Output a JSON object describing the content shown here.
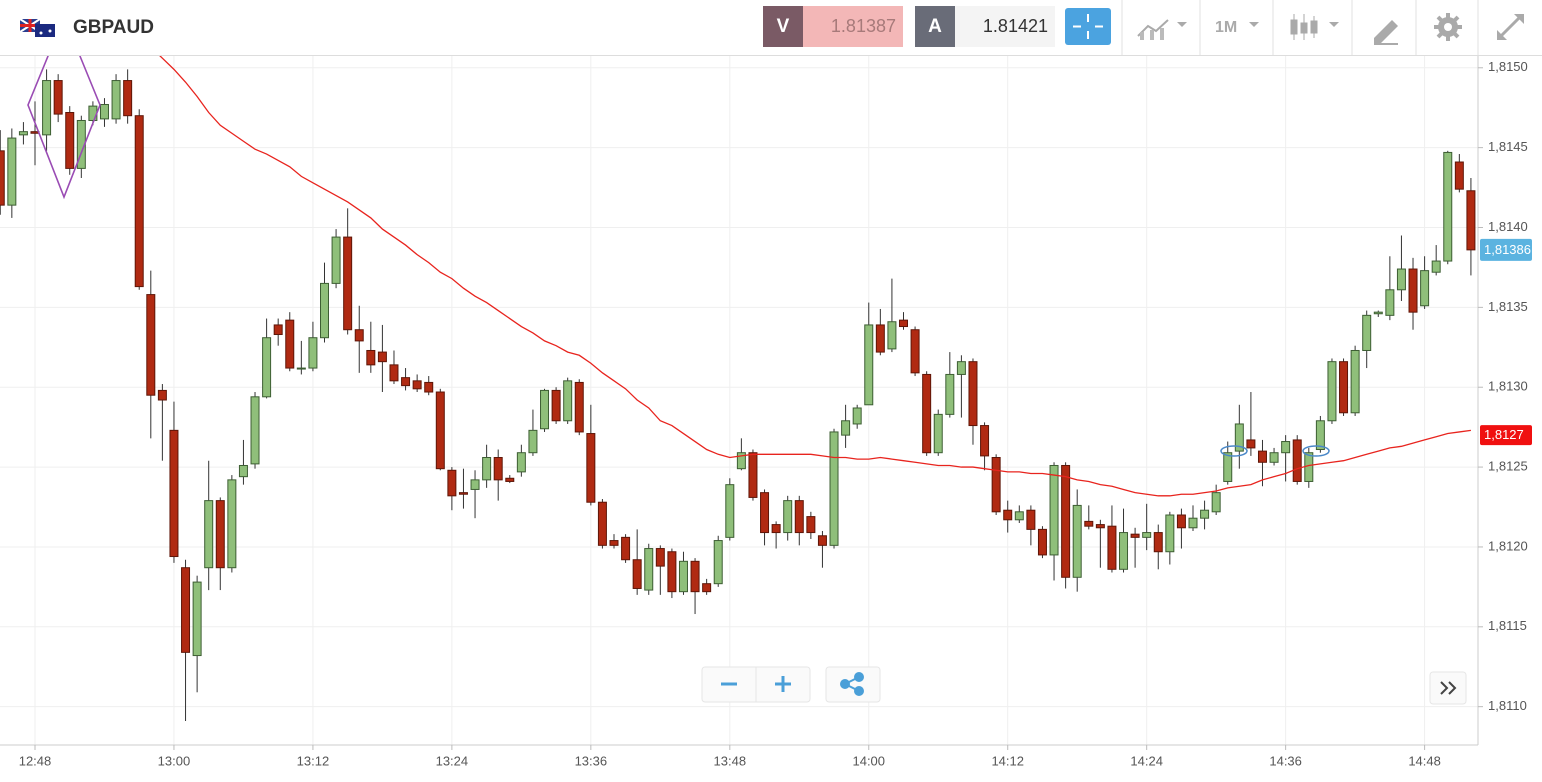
{
  "toolbar": {
    "symbol": "GBPAUD",
    "sell": {
      "label": "V",
      "price": "1.81387"
    },
    "buy": {
      "label": "A",
      "price": "1.81421"
    },
    "timeframe": "1M"
  },
  "chart_data": {
    "type": "candlestick",
    "categories": [
      null,
      null,
      null,
      "12:48",
      null,
      null,
      null,
      null,
      null,
      null,
      null,
      null,
      null,
      null,
      null,
      "13:00",
      null,
      null,
      null,
      null,
      null,
      null,
      null,
      null,
      null,
      null,
      null,
      "13:12",
      null,
      null,
      null,
      null,
      null,
      null,
      null,
      null,
      null,
      null,
      null,
      "13:24",
      null,
      null,
      null,
      null,
      null,
      null,
      null,
      null,
      null,
      null,
      null,
      "13:36",
      null,
      null,
      null,
      null,
      null,
      null,
      null,
      null,
      null,
      null,
      null,
      "13:48",
      null,
      null,
      null,
      null,
      null,
      null,
      null,
      null,
      null,
      null,
      null,
      "14:00",
      null,
      null,
      null,
      null,
      null,
      null,
      null,
      null,
      null,
      null,
      null,
      "14:12",
      null,
      null,
      null,
      null,
      null,
      null,
      null,
      null,
      null,
      null,
      null,
      "14:24",
      null,
      null,
      null,
      null,
      null,
      null,
      null,
      null,
      null,
      null,
      null,
      "14:36",
      null,
      null,
      null,
      null,
      null,
      null,
      null,
      null,
      null,
      null,
      null,
      "14:48",
      null,
      null,
      null,
      null
    ],
    "open": [
      1.81448,
      1.81414,
      1.81458,
      1.8146,
      1.81458,
      1.81492,
      1.81472,
      1.81437,
      1.81467,
      1.81468,
      1.81468,
      1.81492,
      1.8147,
      1.81358,
      1.81298,
      1.81273,
      1.81187,
      1.81132,
      1.81187,
      1.81229,
      1.81187,
      1.81244,
      1.81252,
      1.81294,
      1.81339,
      1.81342,
      1.81312,
      1.81312,
      1.81331,
      1.81365,
      1.81394,
      1.81336,
      1.81323,
      1.81322,
      1.81314,
      1.81306,
      1.81304,
      1.81303,
      1.81297,
      1.81248,
      1.81234,
      1.81236,
      1.81242,
      1.81256,
      1.81243,
      1.81247,
      1.81259,
      1.81274,
      1.81298,
      1.81279,
      1.81303,
      1.81271,
      1.81228,
      1.81204,
      1.81206,
      1.81192,
      1.81173,
      1.81199,
      1.81197,
      1.81172,
      1.81191,
      1.81177,
      1.81177,
      1.81206,
      1.81249,
      1.81259,
      1.81234,
      1.81214,
      1.81209,
      1.81229,
      1.81219,
      1.81207,
      1.81201,
      1.8127,
      1.81277,
      1.81289,
      1.81339,
      1.81324,
      1.81342,
      1.81336,
      1.81308,
      1.81259,
      1.81283,
      1.81308,
      1.81316,
      1.81276,
      1.81256,
      1.81223,
      1.81217,
      1.81223,
      1.81211,
      1.81195,
      1.81251,
      1.81181,
      1.81216,
      1.81214,
      1.81213,
      1.81186,
      1.81208,
      1.81206,
      1.81209,
      1.81197,
      1.8122,
      1.81212,
      1.81218,
      1.81222,
      1.81241,
      1.8126,
      1.81267,
      1.8126,
      1.81253,
      1.81259,
      1.81267,
      1.81241,
      1.81261,
      1.81279,
      1.81316,
      1.81284,
      1.81323,
      1.81346,
      1.81345,
      1.81361,
      1.81374,
      1.81351,
      1.81372,
      1.81379,
      1.81441,
      1.81423
    ],
    "high": [
      1.81461,
      1.81462,
      1.81466,
      1.81479,
      1.81499,
      1.81496,
      1.81476,
      1.8147,
      1.81479,
      1.81481,
      1.81496,
      1.81499,
      1.81474,
      1.81373,
      1.81302,
      1.81291,
      1.81192,
      1.81182,
      1.81254,
      1.81231,
      1.81245,
      1.81267,
      1.81297,
      1.81343,
      1.81343,
      1.81347,
      1.81329,
      1.81341,
      1.81378,
      1.81399,
      1.81412,
      1.81351,
      1.81341,
      1.81339,
      1.81323,
      1.81312,
      1.81308,
      1.81307,
      1.81299,
      1.8125,
      1.81249,
      1.81248,
      1.81264,
      1.81261,
      1.81245,
      1.81264,
      1.81286,
      1.81299,
      1.813,
      1.81306,
      1.81305,
      1.81289,
      1.8123,
      1.81208,
      1.81208,
      1.81211,
      1.81202,
      1.81201,
      1.81199,
      1.81197,
      1.81193,
      1.8118,
      1.81207,
      1.81243,
      1.81268,
      1.81261,
      1.81236,
      1.81216,
      1.81232,
      1.81232,
      1.81222,
      1.8121,
      1.81274,
      1.81289,
      1.81289,
      1.81353,
      1.81349,
      1.81368,
      1.81347,
      1.81338,
      1.8131,
      1.81286,
      1.81322,
      1.8132,
      1.81318,
      1.81278,
      1.81258,
      1.81229,
      1.81226,
      1.81226,
      1.81213,
      1.81253,
      1.81253,
      1.81236,
      1.81226,
      1.81217,
      1.81226,
      1.81224,
      1.81212,
      1.81227,
      1.81214,
      1.81222,
      1.81224,
      1.81226,
      1.81229,
      1.81239,
      1.81266,
      1.81289,
      1.81297,
      1.81267,
      1.81262,
      1.8127,
      1.8127,
      1.81262,
      1.81282,
      1.81318,
      1.81318,
      1.81326,
      1.81348,
      1.81348,
      1.81382,
      1.81395,
      1.81381,
      1.81382,
      1.81389,
      1.81448,
      1.81446,
      1.81431
    ],
    "low": [
      1.81408,
      1.81406,
      1.81452,
      1.81439,
      1.81448,
      1.81466,
      1.81433,
      1.81431,
      1.81464,
      1.81463,
      1.81465,
      1.81465,
      1.81361,
      1.81268,
      1.81254,
      1.8119,
      1.81091,
      1.81109,
      1.81173,
      1.81173,
      1.81184,
      1.81239,
      1.81249,
      1.81293,
      1.81326,
      1.8131,
      1.81308,
      1.8131,
      1.81328,
      1.81362,
      1.81333,
      1.81309,
      1.81309,
      1.81297,
      1.81302,
      1.81298,
      1.81297,
      1.81295,
      1.81248,
      1.81223,
      1.81224,
      1.81218,
      1.81237,
      1.81229,
      1.8124,
      1.81244,
      1.81257,
      1.81272,
      1.81277,
      1.81277,
      1.8127,
      1.81226,
      1.81199,
      1.81199,
      1.8119,
      1.8117,
      1.8117,
      1.8117,
      1.81168,
      1.8117,
      1.81158,
      1.8117,
      1.81175,
      1.81204,
      1.81248,
      1.81229,
      1.81201,
      1.81199,
      1.81204,
      1.81201,
      1.81205,
      1.81187,
      1.81199,
      1.81262,
      1.81274,
      1.81289,
      1.8132,
      1.81322,
      1.81336,
      1.81307,
      1.81257,
      1.81257,
      1.81281,
      1.81281,
      1.81264,
      1.81248,
      1.8122,
      1.81209,
      1.81215,
      1.81201,
      1.81193,
      1.81179,
      1.81174,
      1.81172,
      1.81211,
      1.81187,
      1.81184,
      1.81184,
      1.81187,
      1.81198,
      1.81186,
      1.81189,
      1.81199,
      1.8121,
      1.81211,
      1.8122,
      1.81239,
      1.81249,
      1.81257,
      1.81238,
      1.81251,
      1.81241,
      1.81239,
      1.81237,
      1.81259,
      1.81277,
      1.81282,
      1.81282,
      1.81312,
      1.81344,
      1.81342,
      1.81354,
      1.81336,
      1.81349,
      1.8137,
      1.81377,
      1.81422,
      1.8137
    ],
    "close": [
      1.81414,
      1.81456,
      1.8146,
      1.81459,
      1.81492,
      1.81471,
      1.81437,
      1.81467,
      1.81476,
      1.81477,
      1.81492,
      1.8147,
      1.81363,
      1.81295,
      1.81292,
      1.81194,
      1.81134,
      1.81178,
      1.81229,
      1.81187,
      1.81242,
      1.81251,
      1.81294,
      1.81331,
      1.81333,
      1.81312,
      1.81312,
      1.81331,
      1.81365,
      1.81394,
      1.81336,
      1.81329,
      1.81314,
      1.81316,
      1.81304,
      1.81301,
      1.81299,
      1.81297,
      1.81249,
      1.81232,
      1.81233,
      1.81242,
      1.81256,
      1.81242,
      1.81241,
      1.81259,
      1.81273,
      1.81298,
      1.81279,
      1.81304,
      1.81272,
      1.81228,
      1.81201,
      1.81201,
      1.81192,
      1.81174,
      1.81199,
      1.81188,
      1.81172,
      1.81191,
      1.81172,
      1.81172,
      1.81204,
      1.81239,
      1.81259,
      1.81231,
      1.81209,
      1.81209,
      1.81229,
      1.81209,
      1.81209,
      1.81201,
      1.81272,
      1.81279,
      1.81287,
      1.81339,
      1.81322,
      1.81341,
      1.81338,
      1.81309,
      1.81259,
      1.81283,
      1.81308,
      1.81316,
      1.81276,
      1.81257,
      1.81222,
      1.81217,
      1.81222,
      1.81211,
      1.81195,
      1.81251,
      1.81181,
      1.81226,
      1.81213,
      1.81212,
      1.81186,
      1.81209,
      1.81206,
      1.81209,
      1.81197,
      1.8122,
      1.81212,
      1.81218,
      1.81223,
      1.81234,
      1.81259,
      1.81277,
      1.81262,
      1.81253,
      1.81259,
      1.81266,
      1.81241,
      1.81259,
      1.81279,
      1.81316,
      1.81284,
      1.81323,
      1.81345,
      1.81347,
      1.81361,
      1.81374,
      1.81347,
      1.81373,
      1.81379,
      1.81447,
      1.81424,
      1.81386
    ],
    "up_color": "#8fbf7a",
    "down_color": "#b02a12",
    "moving_average": {
      "color": "#e8241e",
      "values": [
        null,
        null,
        null,
        null,
        null,
        null,
        null,
        null,
        null,
        null,
        null,
        null,
        null,
        1.81513,
        1.81506,
        1.81499,
        1.81491,
        1.81482,
        1.81472,
        1.81464,
        1.81459,
        1.81454,
        1.81449,
        1.81446,
        1.81442,
        1.81438,
        1.81432,
        1.81428,
        1.81424,
        1.8142,
        1.81416,
        1.81411,
        1.81406,
        1.81399,
        1.81394,
        1.81389,
        1.81383,
        1.81378,
        1.81372,
        1.81368,
        1.81362,
        1.81357,
        1.81353,
        1.81348,
        1.81343,
        1.81338,
        1.81334,
        1.81329,
        1.81326,
        1.81322,
        1.8132,
        1.81315,
        1.81309,
        1.81304,
        1.81299,
        1.81292,
        1.81287,
        1.81279,
        1.81276,
        1.81271,
        1.81266,
        1.81261,
        1.81258,
        1.81256,
        1.81257,
        1.81258,
        1.81258,
        1.81258,
        1.81258,
        1.81258,
        1.81258,
        1.81257,
        1.81256,
        1.81256,
        1.81255,
        1.81255,
        1.81256,
        1.81255,
        1.81254,
        1.81253,
        1.81252,
        1.81251,
        1.81251,
        1.8125,
        1.8125,
        1.81249,
        1.81248,
        1.81247,
        1.81247,
        1.81246,
        1.81246,
        1.81245,
        1.81244,
        1.81242,
        1.81241,
        1.81239,
        1.81238,
        1.81236,
        1.81234,
        1.81233,
        1.81232,
        1.81232,
        1.81233,
        1.81233,
        1.81234,
        1.81235,
        1.81237,
        1.81238,
        1.81239,
        1.81242,
        1.81244,
        1.81246,
        1.81249,
        1.81251,
        1.81252,
        1.81253,
        1.81254,
        1.81256,
        1.81258,
        1.8126,
        1.81262,
        1.81263,
        1.81265,
        1.81267,
        1.81269,
        1.81271,
        1.81272,
        1.81273
      ]
    },
    "ylim": [
      1.81076,
      1.81508
    ],
    "yticks": [
      {
        "value": 1.811,
        "label": "1,8110"
      },
      {
        "value": 1.8115,
        "label": "1,8115"
      },
      {
        "value": 1.812,
        "label": "1,8120"
      },
      {
        "value": 1.8125,
        "label": "1,8125"
      },
      {
        "value": 1.813,
        "label": "1,8130"
      },
      {
        "value": 1.8135,
        "label": "1,8135"
      },
      {
        "value": 1.814,
        "label": "1,8140"
      },
      {
        "value": 1.8145,
        "label": "1,8145"
      },
      {
        "value": 1.815,
        "label": "1,8150"
      }
    ],
    "grid": true,
    "last_price": {
      "value": 1.81386,
      "label": "1,81386",
      "color": "#5bb3e0"
    },
    "ma_last": {
      "value": 1.8127,
      "label": "1,8127",
      "color": "#f01010"
    }
  }
}
